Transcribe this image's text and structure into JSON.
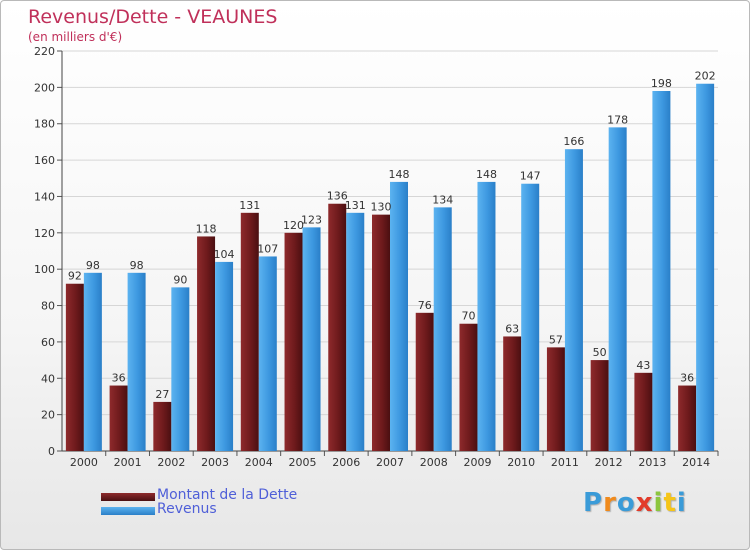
{
  "header": {
    "title": "Revenus/Dette - VEAUNES",
    "subtitle": "(en milliers d'€)"
  },
  "legend": {
    "items": [
      {
        "label": "Montant de la Dette",
        "color": "#7a1f22"
      },
      {
        "label": "Revenus",
        "color": "#3f97e0"
      }
    ]
  },
  "logo": {
    "letters": [
      {
        "char": "P",
        "color": "#3a9bd8"
      },
      {
        "char": "r",
        "color": "#f08a1c"
      },
      {
        "char": "o",
        "color": "#3a9bd8"
      },
      {
        "char": "x",
        "color": "#e23b2a"
      },
      {
        "char": "i",
        "color": "#8cc63f"
      },
      {
        "char": "t",
        "color": "#f5c518"
      },
      {
        "char": "i",
        "color": "#3a9bd8"
      }
    ]
  },
  "chart_data": {
    "type": "bar",
    "title": "Revenus/Dette - VEAUNES",
    "subtitle": "(en milliers d'€)",
    "categories": [
      "2000",
      "2001",
      "2002",
      "2003",
      "2004",
      "2005",
      "2006",
      "2007",
      "2008",
      "2009",
      "2010",
      "2011",
      "2012",
      "2013",
      "2014"
    ],
    "series": [
      {
        "name": "Montant de la Dette",
        "color": "#7a1f22",
        "values": [
          92,
          36,
          27,
          118,
          131,
          120,
          136,
          130,
          76,
          70,
          63,
          57,
          50,
          43,
          36
        ]
      },
      {
        "name": "Revenus",
        "color": "#3f97e0",
        "values": [
          98,
          98,
          90,
          104,
          107,
          123,
          131,
          148,
          134,
          148,
          147,
          166,
          178,
          198,
          202
        ]
      }
    ],
    "ylim": [
      0,
      220
    ],
    "yticks": [
      0,
      20,
      40,
      60,
      80,
      100,
      120,
      140,
      160,
      180,
      200,
      220
    ],
    "grid": true,
    "legend_position": "bottom-left"
  }
}
